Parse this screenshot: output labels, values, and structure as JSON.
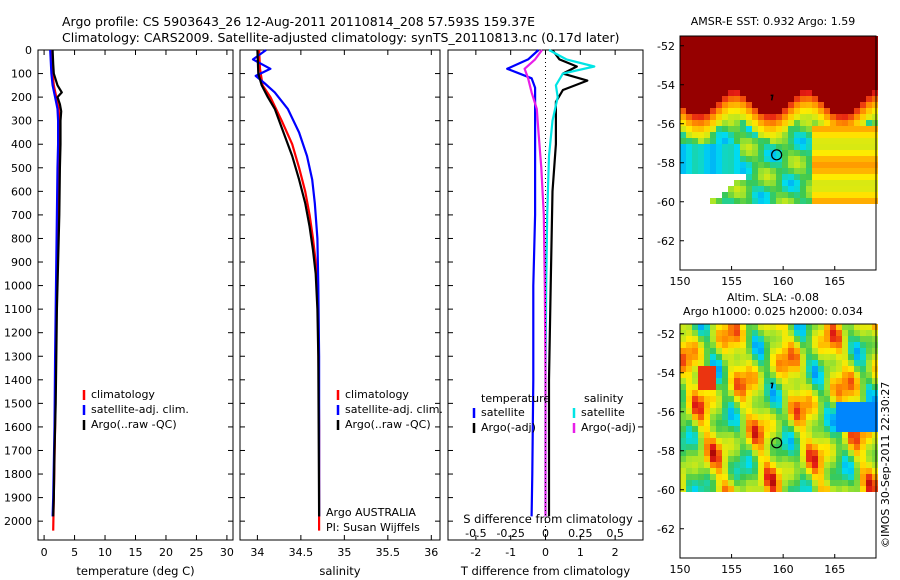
{
  "title": {
    "line1": "Argo profile: CS 5903643_26 12-Aug-2011 20110814_208 57.593S 159.37E",
    "line2": "Climatology: CARS2009. Satellite-adjusted climatology: synTS_20110813.nc (0.17d later)"
  },
  "colors": {
    "climatology": "#ff0000",
    "satellite": "#0000ff",
    "argo": "#000000",
    "sal_satellite": "#00e5e5",
    "sal_argo": "#e81ee8",
    "land_mask": "#ffffff"
  },
  "chart_data": [
    {
      "type": "line",
      "name": "temperature-panel",
      "xlabel": "temperature (deg C)",
      "ylabel": "",
      "xlim": [
        -1,
        31
      ],
      "ylim": [
        2080,
        0
      ],
      "xticks": [
        "0",
        "5",
        "10",
        "15",
        "20",
        "25",
        "30"
      ],
      "yticks": [
        "0",
        "100",
        "200",
        "300",
        "400",
        "500",
        "600",
        "700",
        "800",
        "900",
        "1000",
        "1100",
        "1200",
        "1300",
        "1400",
        "1500",
        "1600",
        "1700",
        "1800",
        "1900",
        "2000"
      ],
      "legend": [
        "climatology",
        "satellite-adj. clim.",
        "Argo(..raw -QC)"
      ],
      "series": [
        {
          "name": "climatology",
          "color": "#ff0000",
          "points": [
            [
              1.2,
              0
            ],
            [
              1.3,
              50
            ],
            [
              1.4,
              100
            ],
            [
              1.6,
              150
            ],
            [
              2.0,
              200
            ],
            [
              2.4,
              250
            ],
            [
              2.5,
              300
            ],
            [
              2.4,
              400
            ],
            [
              2.3,
              500
            ],
            [
              2.2,
              700
            ],
            [
              2.1,
              900
            ],
            [
              2.0,
              1100
            ],
            [
              1.9,
              1300
            ],
            [
              1.8,
              1600
            ],
            [
              1.6,
              1900
            ],
            [
              1.5,
              2040
            ]
          ]
        },
        {
          "name": "satellite-adj. clim.",
          "color": "#0000ff",
          "points": [
            [
              1.0,
              0
            ],
            [
              1.1,
              50
            ],
            [
              1.2,
              100
            ],
            [
              1.4,
              150
            ],
            [
              1.8,
              200
            ],
            [
              2.2,
              250
            ],
            [
              2.3,
              300
            ],
            [
              2.3,
              400
            ],
            [
              2.2,
              500
            ],
            [
              2.1,
              700
            ],
            [
              2.0,
              900
            ],
            [
              1.9,
              1100
            ],
            [
              1.8,
              1300
            ],
            [
              1.7,
              1600
            ],
            [
              1.5,
              1900
            ],
            [
              1.4,
              1980
            ]
          ]
        },
        {
          "name": "Argo(..raw -QC)",
          "color": "#000000",
          "points": [
            [
              1.4,
              0
            ],
            [
              1.5,
              60
            ],
            [
              1.6,
              100
            ],
            [
              2.2,
              150
            ],
            [
              2.9,
              180
            ],
            [
              2.2,
              200
            ],
            [
              2.6,
              230
            ],
            [
              2.8,
              260
            ],
            [
              2.7,
              300
            ],
            [
              2.7,
              400
            ],
            [
              2.6,
              500
            ],
            [
              2.5,
              700
            ],
            [
              2.3,
              900
            ],
            [
              2.1,
              1100
            ],
            [
              2.0,
              1300
            ],
            [
              1.9,
              1500
            ],
            [
              1.7,
              1700
            ],
            [
              1.6,
              1900
            ],
            [
              1.5,
              1980
            ]
          ]
        }
      ]
    },
    {
      "type": "line",
      "name": "salinity-panel",
      "xlabel": "salinity",
      "ylabel": "",
      "xlim": [
        33.8,
        36.1
      ],
      "ylim": [
        2080,
        0
      ],
      "xticks": [
        "34",
        "34.5",
        "35",
        "35.5",
        "36"
      ],
      "legend": [
        "climatology",
        "satellite-adj. clim.",
        "Argo(..raw -QC)"
      ],
      "annotation": [
        "Argo AUSTRALIA",
        "PI: Susan Wijffels"
      ],
      "series": [
        {
          "name": "climatology",
          "color": "#ff0000",
          "points": [
            [
              34.02,
              0
            ],
            [
              34.03,
              80
            ],
            [
              34.06,
              150
            ],
            [
              34.15,
              200
            ],
            [
              34.28,
              300
            ],
            [
              34.4,
              400
            ],
            [
              34.48,
              500
            ],
            [
              34.55,
              600
            ],
            [
              34.6,
              700
            ],
            [
              34.64,
              800
            ],
            [
              34.67,
              900
            ],
            [
              34.69,
              1000
            ],
            [
              34.7,
              1200
            ],
            [
              34.71,
              1600
            ],
            [
              34.71,
              2040
            ]
          ]
        },
        {
          "name": "satellite-adj. clim.",
          "color": "#0000ff",
          "points": [
            [
              34.1,
              0
            ],
            [
              33.95,
              40
            ],
            [
              34.15,
              80
            ],
            [
              33.98,
              110
            ],
            [
              34.08,
              140
            ],
            [
              34.2,
              180
            ],
            [
              34.35,
              250
            ],
            [
              34.48,
              350
            ],
            [
              34.57,
              450
            ],
            [
              34.63,
              550
            ],
            [
              34.66,
              650
            ],
            [
              34.69,
              800
            ],
            [
              34.7,
              1000
            ],
            [
              34.71,
              1300
            ],
            [
              34.71,
              1980
            ]
          ]
        },
        {
          "name": "Argo(..raw -QC)",
          "color": "#000000",
          "points": [
            [
              34.0,
              0
            ],
            [
              34.01,
              100
            ],
            [
              34.05,
              150
            ],
            [
              34.12,
              200
            ],
            [
              34.2,
              250
            ],
            [
              34.3,
              350
            ],
            [
              34.4,
              450
            ],
            [
              34.48,
              550
            ],
            [
              34.55,
              650
            ],
            [
              34.6,
              750
            ],
            [
              34.64,
              850
            ],
            [
              34.67,
              950
            ],
            [
              34.69,
              1100
            ],
            [
              34.7,
              1300
            ],
            [
              34.71,
              1980
            ]
          ]
        }
      ]
    },
    {
      "type": "line",
      "name": "difference-panel",
      "xlabel": "T difference from climatology",
      "xlabel_top": "S difference from climatology",
      "ylabel": "",
      "xlim": [
        -2.8,
        2.8
      ],
      "ylim": [
        2080,
        0
      ],
      "xticks": [
        "-2",
        "-1",
        "0",
        "1",
        "2"
      ],
      "xticks_s": [
        "-0.5",
        "-0.25",
        "0",
        "0.25",
        "0.5"
      ],
      "legend_temperature": {
        "header": "temperature",
        "items": [
          "satellite",
          "Argo(-adj)"
        ]
      },
      "legend_salinity": {
        "header": "salinity",
        "items": [
          "satellite",
          "Argo(-adj)"
        ]
      },
      "series": [
        {
          "name": "temperature satellite",
          "color": "#0000ff",
          "points": [
            [
              -0.2,
              0
            ],
            [
              -0.5,
              40
            ],
            [
              -1.1,
              80
            ],
            [
              -0.4,
              120
            ],
            [
              -0.3,
              160
            ],
            [
              -0.3,
              250
            ],
            [
              -0.3,
              400
            ],
            [
              -0.3,
              700
            ],
            [
              -0.35,
              1000
            ],
            [
              -0.35,
              1400
            ],
            [
              -0.38,
              1800
            ],
            [
              -0.4,
              1980
            ]
          ]
        },
        {
          "name": "temperature Argo(-adj)",
          "color": "#000000",
          "points": [
            [
              0.2,
              0
            ],
            [
              0.4,
              40
            ],
            [
              0.9,
              70
            ],
            [
              0.5,
              100
            ],
            [
              1.2,
              130
            ],
            [
              0.5,
              170
            ],
            [
              0.3,
              220
            ],
            [
              0.3,
              300
            ],
            [
              0.3,
              400
            ],
            [
              0.2,
              600
            ],
            [
              0.15,
              1000
            ],
            [
              0.1,
              1400
            ],
            [
              0.1,
              1980
            ]
          ]
        },
        {
          "name": "salinity satellite",
          "color": "#00e5e5",
          "points": [
            [
              0.1,
              0
            ],
            [
              0.6,
              40
            ],
            [
              1.4,
              70
            ],
            [
              0.5,
              100
            ],
            [
              0.3,
              150
            ],
            [
              0.35,
              200
            ],
            [
              0.2,
              300
            ],
            [
              0.1,
              450
            ],
            [
              0.05,
              700
            ],
            [
              0.02,
              1000
            ],
            [
              0.0,
              1400
            ],
            [
              0.0,
              1980
            ]
          ]
        },
        {
          "name": "salinity Argo(-adj)",
          "color": "#e81ee8",
          "points": [
            [
              -0.1,
              0
            ],
            [
              -0.3,
              40
            ],
            [
              -0.6,
              80
            ],
            [
              -0.5,
              120
            ],
            [
              -0.4,
              180
            ],
            [
              -0.25,
              250
            ],
            [
              -0.2,
              350
            ],
            [
              -0.12,
              500
            ],
            [
              -0.05,
              700
            ],
            [
              -0.02,
              1000
            ],
            [
              0.0,
              1400
            ],
            [
              0.0,
              1980
            ]
          ]
        }
      ]
    },
    {
      "type": "heatmap",
      "name": "sst-map",
      "title": "AMSR-E SST: 0.932 Argo: 1.59",
      "xlim": [
        150,
        169
      ],
      "ylim": [
        -63.5,
        -51.5
      ],
      "xticks": [
        "150",
        "155",
        "160",
        "165"
      ],
      "yticks": [
        "-52",
        "-54",
        "-56",
        "-58",
        "-60",
        "-62"
      ],
      "marker": {
        "lon": 159.37,
        "lat": -57.593
      }
    },
    {
      "type": "heatmap",
      "name": "sla-map",
      "title": "Altim. SLA: -0.08",
      "subtitle": "Argo h1000: 0.025 h2000: 0.034",
      "xlim": [
        150,
        169
      ],
      "ylim": [
        -63.5,
        -51.5
      ],
      "xticks": [
        "150",
        "155",
        "160",
        "165"
      ],
      "yticks": [
        "-52",
        "-54",
        "-56",
        "-58",
        "-60",
        "-62"
      ],
      "marker": {
        "lon": 159.37,
        "lat": -57.593
      }
    }
  ],
  "footer": "©IMOS 30-Sep-2011 22:30:27"
}
